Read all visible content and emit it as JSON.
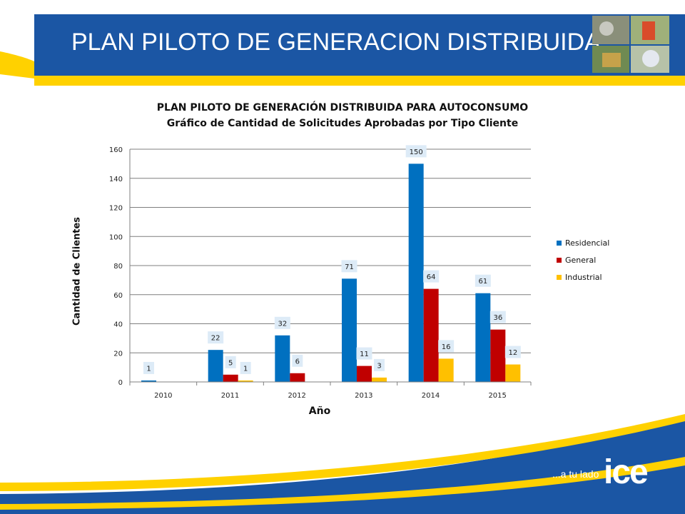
{
  "slide": {
    "title": "PLAN PILOTO DE GENERACION DISTRIBUIDA",
    "slogan": "...a tu lado",
    "logo_text": "ice"
  },
  "colors": {
    "brand_blue": "#1B56A4",
    "brand_yellow": "#FFD100",
    "residencial": "#0070C0",
    "general": "#C00000",
    "industrial": "#FFC000"
  },
  "chart_data": {
    "type": "bar",
    "title": "PLAN PILOTO DE GENERACIÓN DISTRIBUIDA PARA AUTOCONSUMO",
    "subtitle": "Gráfico de Cantidad de Solicitudes Aprobadas por Tipo Cliente",
    "xlabel": "Año",
    "ylabel": "Cantidad de Clientes",
    "categories": [
      "2010",
      "2011",
      "2012",
      "2013",
      "2014",
      "2015"
    ],
    "ylim": [
      0,
      160
    ],
    "yticks": [
      0,
      20,
      40,
      60,
      80,
      100,
      120,
      140,
      160
    ],
    "grid": true,
    "legend_position": "right",
    "series": [
      {
        "name": "Residencial",
        "color": "#0070C0",
        "values": [
          1,
          22,
          32,
          71,
          150,
          61
        ]
      },
      {
        "name": "General",
        "color": "#C00000",
        "values": [
          null,
          5,
          6,
          11,
          64,
          36
        ]
      },
      {
        "name": "Industrial",
        "color": "#FFC000",
        "values": [
          null,
          1,
          null,
          3,
          16,
          12
        ]
      }
    ]
  }
}
